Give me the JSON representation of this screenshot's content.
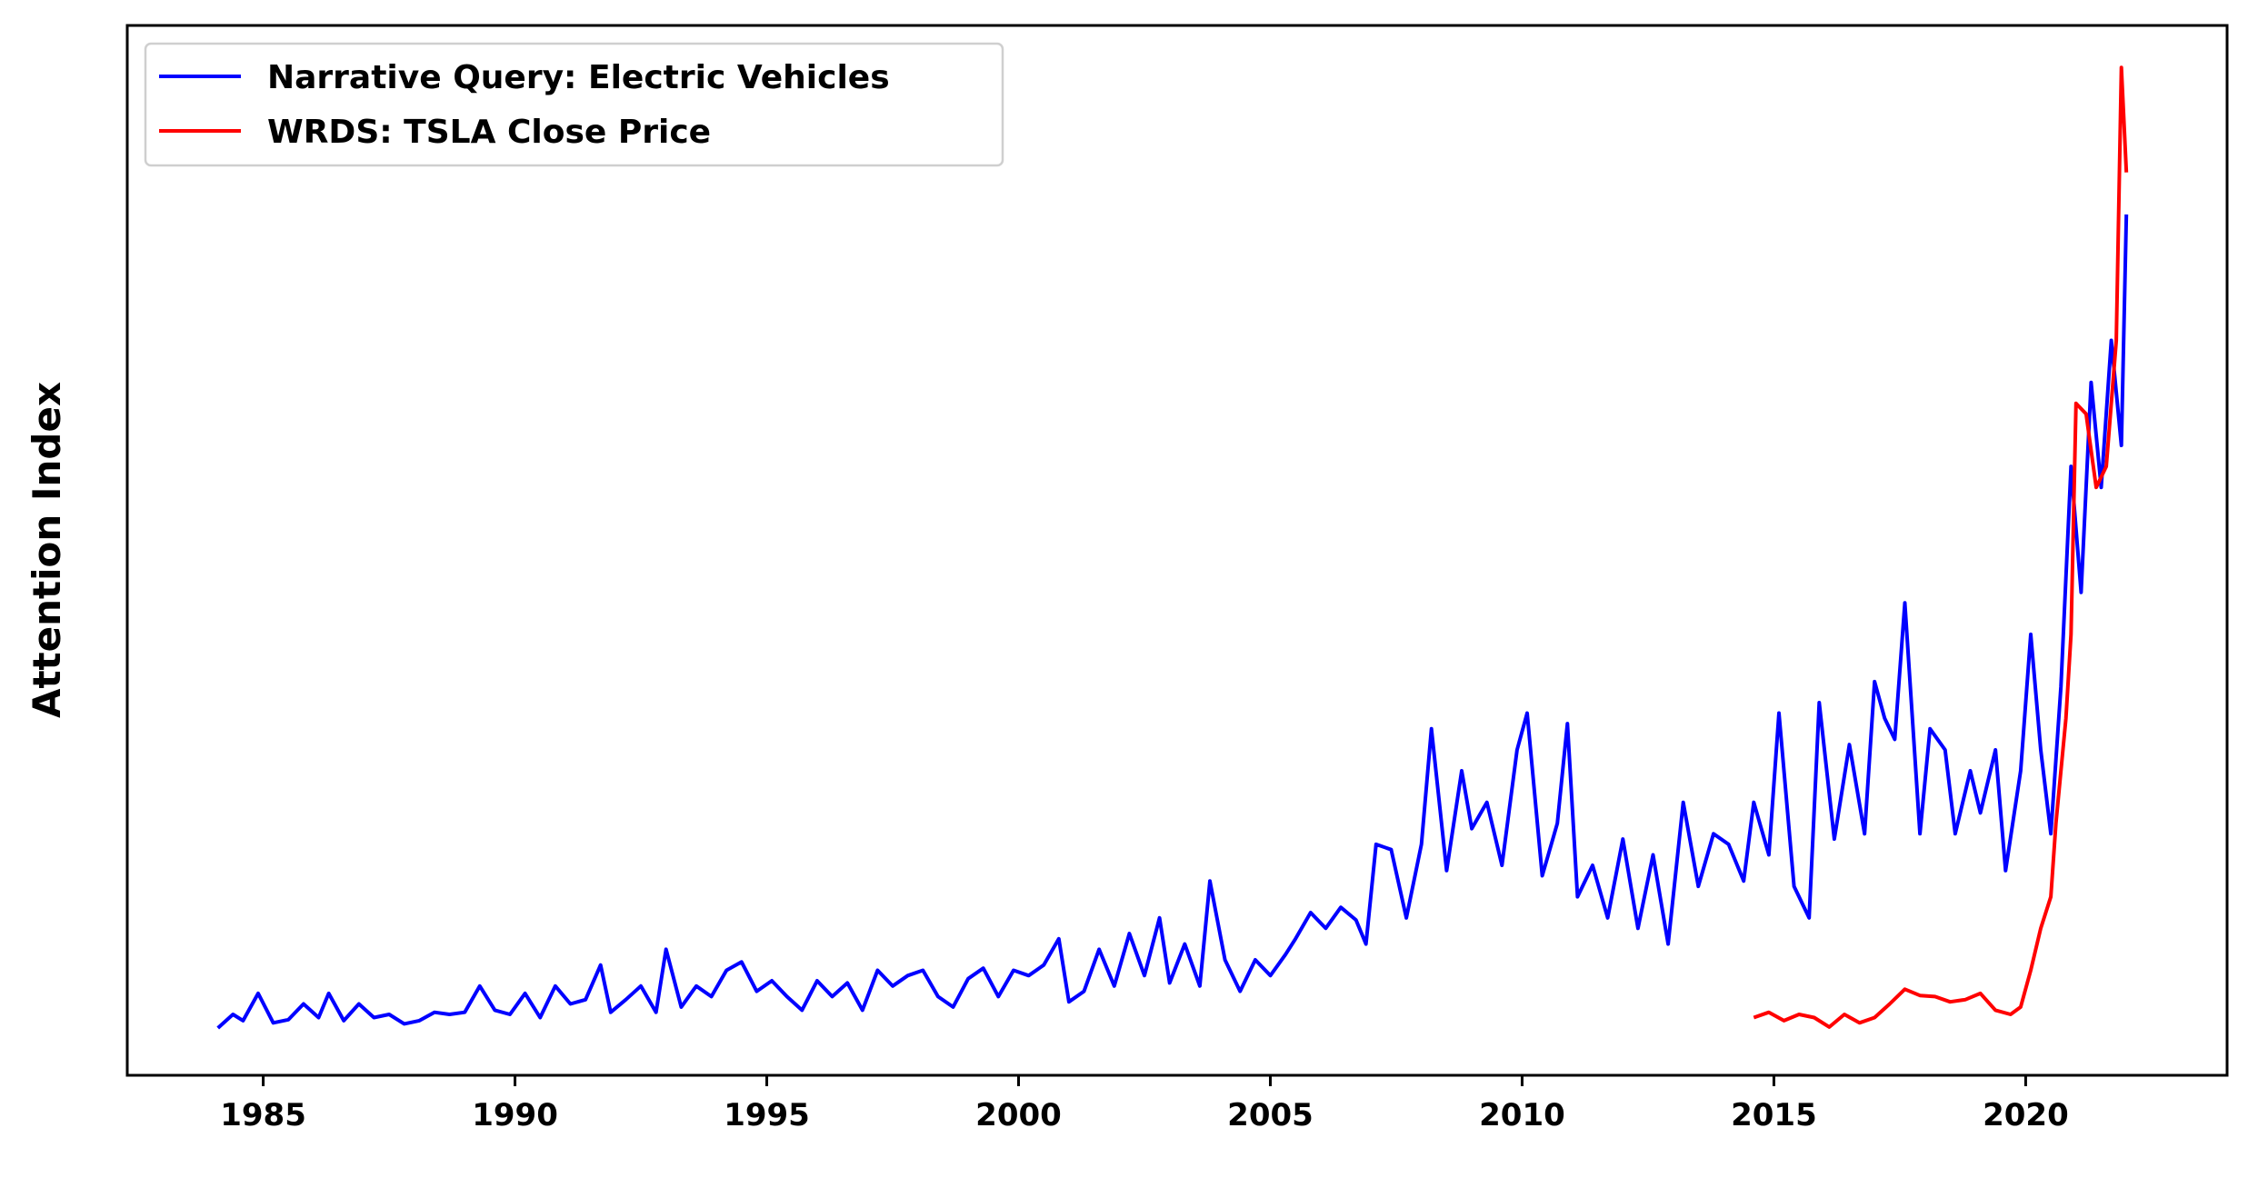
{
  "chart_data": {
    "type": "line",
    "ylabel": "Attention Index",
    "xlabel": "",
    "xlim": [
      1982.3,
      2024.0
    ],
    "ylim": [
      0,
      1.0
    ],
    "x_ticks": [
      1985,
      1990,
      1995,
      2000,
      2005,
      2010,
      2015,
      2020
    ],
    "y_ticks_visible": false,
    "grid": false,
    "legend_position": "top-left",
    "series": [
      {
        "name": "Narrative Query: Electric Vehicles",
        "color": "#0000ff",
        "points": [
          [
            1984.1,
            0.045
          ],
          [
            1984.4,
            0.058
          ],
          [
            1984.6,
            0.052
          ],
          [
            1984.9,
            0.078
          ],
          [
            1985.2,
            0.05
          ],
          [
            1985.5,
            0.053
          ],
          [
            1985.8,
            0.068
          ],
          [
            1986.1,
            0.055
          ],
          [
            1986.3,
            0.078
          ],
          [
            1986.6,
            0.052
          ],
          [
            1986.9,
            0.068
          ],
          [
            1987.2,
            0.055
          ],
          [
            1987.5,
            0.058
          ],
          [
            1987.8,
            0.049
          ],
          [
            1988.1,
            0.052
          ],
          [
            1988.4,
            0.06
          ],
          [
            1988.7,
            0.058
          ],
          [
            1989.0,
            0.06
          ],
          [
            1989.3,
            0.085
          ],
          [
            1989.6,
            0.062
          ],
          [
            1989.9,
            0.058
          ],
          [
            1990.2,
            0.078
          ],
          [
            1990.5,
            0.055
          ],
          [
            1990.8,
            0.085
          ],
          [
            1991.1,
            0.068
          ],
          [
            1991.4,
            0.072
          ],
          [
            1991.7,
            0.105
          ],
          [
            1991.9,
            0.06
          ],
          [
            1992.2,
            0.072
          ],
          [
            1992.5,
            0.085
          ],
          [
            1992.8,
            0.06
          ],
          [
            1993.0,
            0.12
          ],
          [
            1993.3,
            0.065
          ],
          [
            1993.6,
            0.085
          ],
          [
            1993.9,
            0.075
          ],
          [
            1994.2,
            0.1
          ],
          [
            1994.5,
            0.108
          ],
          [
            1994.8,
            0.08
          ],
          [
            1995.1,
            0.09
          ],
          [
            1995.4,
            0.075
          ],
          [
            1995.7,
            0.062
          ],
          [
            1996.0,
            0.09
          ],
          [
            1996.3,
            0.075
          ],
          [
            1996.6,
            0.088
          ],
          [
            1996.9,
            0.062
          ],
          [
            1997.2,
            0.1
          ],
          [
            1997.5,
            0.085
          ],
          [
            1997.8,
            0.095
          ],
          [
            1998.1,
            0.1
          ],
          [
            1998.4,
            0.075
          ],
          [
            1998.7,
            0.065
          ],
          [
            1999.0,
            0.092
          ],
          [
            1999.3,
            0.102
          ],
          [
            1999.6,
            0.075
          ],
          [
            1999.9,
            0.1
          ],
          [
            2000.2,
            0.095
          ],
          [
            2000.5,
            0.105
          ],
          [
            2000.8,
            0.13
          ],
          [
            2001.0,
            0.07
          ],
          [
            2001.3,
            0.08
          ],
          [
            2001.6,
            0.12
          ],
          [
            2001.9,
            0.085
          ],
          [
            2002.2,
            0.135
          ],
          [
            2002.5,
            0.095
          ],
          [
            2002.8,
            0.15
          ],
          [
            2003.0,
            0.088
          ],
          [
            2003.3,
            0.125
          ],
          [
            2003.6,
            0.085
          ],
          [
            2003.8,
            0.185
          ],
          [
            2004.1,
            0.11
          ],
          [
            2004.4,
            0.08
          ],
          [
            2004.7,
            0.11
          ],
          [
            2005.0,
            0.095
          ],
          [
            2005.3,
            0.115
          ],
          [
            2005.5,
            0.13
          ],
          [
            2005.8,
            0.155
          ],
          [
            2006.1,
            0.14
          ],
          [
            2006.4,
            0.16
          ],
          [
            2006.7,
            0.148
          ],
          [
            2006.9,
            0.125
          ],
          [
            2007.1,
            0.22
          ],
          [
            2007.4,
            0.215
          ],
          [
            2007.7,
            0.15
          ],
          [
            2008.0,
            0.22
          ],
          [
            2008.2,
            0.33
          ],
          [
            2008.5,
            0.195
          ],
          [
            2008.8,
            0.29
          ],
          [
            2009.0,
            0.235
          ],
          [
            2009.3,
            0.26
          ],
          [
            2009.6,
            0.2
          ],
          [
            2009.9,
            0.31
          ],
          [
            2010.1,
            0.345
          ],
          [
            2010.4,
            0.19
          ],
          [
            2010.7,
            0.24
          ],
          [
            2010.9,
            0.335
          ],
          [
            2011.1,
            0.17
          ],
          [
            2011.4,
            0.2
          ],
          [
            2011.7,
            0.15
          ],
          [
            2012.0,
            0.225
          ],
          [
            2012.3,
            0.14
          ],
          [
            2012.6,
            0.21
          ],
          [
            2012.9,
            0.125
          ],
          [
            2013.2,
            0.26
          ],
          [
            2013.5,
            0.18
          ],
          [
            2013.8,
            0.23
          ],
          [
            2014.1,
            0.22
          ],
          [
            2014.4,
            0.185
          ],
          [
            2014.6,
            0.26
          ],
          [
            2014.9,
            0.21
          ],
          [
            2015.1,
            0.345
          ],
          [
            2015.4,
            0.18
          ],
          [
            2015.7,
            0.15
          ],
          [
            2015.9,
            0.355
          ],
          [
            2016.2,
            0.225
          ],
          [
            2016.5,
            0.315
          ],
          [
            2016.8,
            0.23
          ],
          [
            2017.0,
            0.375
          ],
          [
            2017.2,
            0.34
          ],
          [
            2017.4,
            0.32
          ],
          [
            2017.6,
            0.45
          ],
          [
            2017.9,
            0.23
          ],
          [
            2018.1,
            0.33
          ],
          [
            2018.4,
            0.31
          ],
          [
            2018.6,
            0.23
          ],
          [
            2018.9,
            0.29
          ],
          [
            2019.1,
            0.25
          ],
          [
            2019.4,
            0.31
          ],
          [
            2019.6,
            0.195
          ],
          [
            2019.9,
            0.29
          ],
          [
            2020.1,
            0.42
          ],
          [
            2020.3,
            0.31
          ],
          [
            2020.5,
            0.23
          ],
          [
            2020.7,
            0.37
          ],
          [
            2020.9,
            0.58
          ],
          [
            2021.1,
            0.46
          ],
          [
            2021.3,
            0.66
          ],
          [
            2021.5,
            0.56
          ],
          [
            2021.7,
            0.7
          ],
          [
            2021.9,
            0.6
          ],
          [
            2022.0,
            0.82
          ]
        ]
      },
      {
        "name": "WRDS: TSLA Close Price",
        "color": "#ff0000",
        "points": [
          [
            2014.6,
            0.055
          ],
          [
            2014.9,
            0.06
          ],
          [
            2015.2,
            0.052
          ],
          [
            2015.5,
            0.058
          ],
          [
            2015.8,
            0.055
          ],
          [
            2016.1,
            0.046
          ],
          [
            2016.4,
            0.058
          ],
          [
            2016.7,
            0.05
          ],
          [
            2017.0,
            0.055
          ],
          [
            2017.3,
            0.068
          ],
          [
            2017.6,
            0.082
          ],
          [
            2017.9,
            0.076
          ],
          [
            2018.2,
            0.075
          ],
          [
            2018.5,
            0.07
          ],
          [
            2018.8,
            0.072
          ],
          [
            2019.1,
            0.078
          ],
          [
            2019.4,
            0.062
          ],
          [
            2019.7,
            0.058
          ],
          [
            2019.9,
            0.065
          ],
          [
            2020.1,
            0.1
          ],
          [
            2020.3,
            0.14
          ],
          [
            2020.5,
            0.17
          ],
          [
            2020.6,
            0.24
          ],
          [
            2020.8,
            0.34
          ],
          [
            2020.9,
            0.42
          ],
          [
            2021.0,
            0.64
          ],
          [
            2021.2,
            0.63
          ],
          [
            2021.4,
            0.56
          ],
          [
            2021.6,
            0.58
          ],
          [
            2021.8,
            0.7
          ],
          [
            2021.9,
            0.96
          ],
          [
            2022.0,
            0.86
          ]
        ]
      }
    ]
  }
}
